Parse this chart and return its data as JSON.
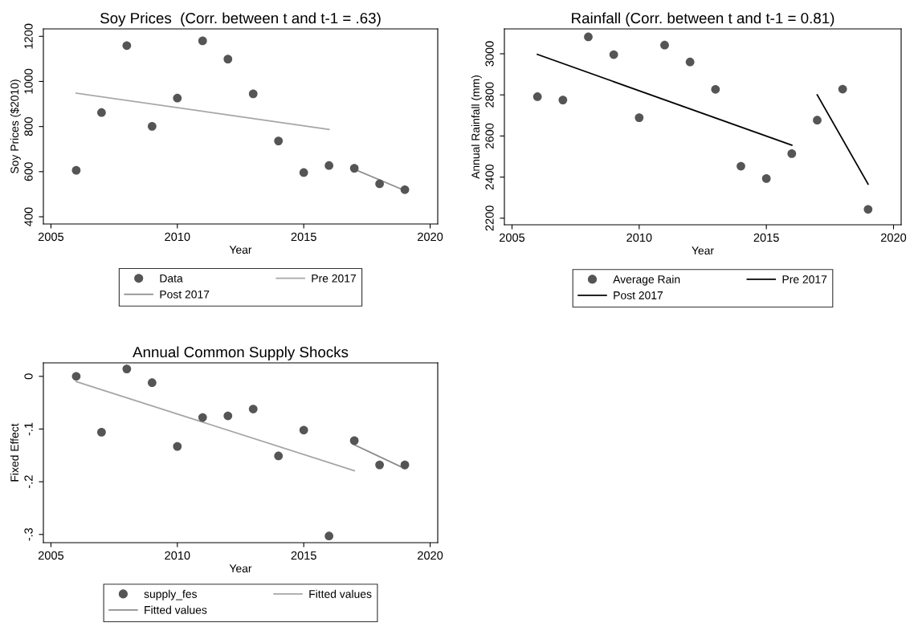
{
  "chart_data": [
    {
      "type": "scatter",
      "title": "Soy Prices  (Corr. between t and t-1 = .63)",
      "xlabel": "Year",
      "ylabel": "Soy Prices ($2010)",
      "xlim": [
        2004.7,
        2020.3
      ],
      "xticks": [
        2005,
        2010,
        2015,
        2020
      ],
      "ylim": [
        368,
        1233
      ],
      "yticks": [
        400,
        600,
        800,
        1000,
        1200
      ],
      "grid": false,
      "legend": "bottom",
      "series": [
        {
          "name": "Data",
          "marker": "circle",
          "color": "#555555",
          "x": [
            2006,
            2007,
            2008,
            2009,
            2010,
            2011,
            2012,
            2013,
            2014,
            2015,
            2016,
            2017,
            2018,
            2019
          ],
          "values": [
            606,
            862,
            1159,
            801,
            926,
            1180,
            1099,
            945,
            736,
            596,
            627,
            615,
            546,
            520
          ]
        },
        {
          "name": "Pre 2017",
          "type": "line",
          "marker": "none",
          "color": "#a6a6a6",
          "x": [
            2006,
            2016
          ],
          "values": [
            948,
            787
          ]
        },
        {
          "name": "Post 2017",
          "type": "line",
          "marker": "none",
          "color": "#8c8c8c",
          "x": [
            2017,
            2019
          ],
          "values": [
            611,
            516
          ]
        }
      ]
    },
    {
      "type": "scatter",
      "title": "Rainfall (Corr. between t and t-1 = 0.81)",
      "xlabel": "Year",
      "ylabel": "Annual Rainfall (mm)",
      "xlim": [
        2004.7,
        2020.3
      ],
      "xticks": [
        2005,
        2010,
        2015,
        2020
      ],
      "ylim": [
        2168,
        3121
      ],
      "yticks": [
        2200,
        2400,
        2600,
        2800,
        3000
      ],
      "grid": false,
      "legend": "bottom",
      "series": [
        {
          "name": "Average Rain",
          "marker": "circle",
          "color": "#555555",
          "x": [
            2006,
            2007,
            2008,
            2009,
            2010,
            2011,
            2012,
            2013,
            2014,
            2015,
            2016,
            2017,
            2018,
            2019
          ],
          "values": [
            2791,
            2775,
            3082,
            2996,
            2689,
            3042,
            2960,
            2827,
            2453,
            2393,
            2514,
            2677,
            2828,
            2243
          ]
        },
        {
          "name": "Pre 2017",
          "type": "line",
          "marker": "none",
          "color": "#000000",
          "x": [
            2006,
            2016
          ],
          "values": [
            2997,
            2555
          ]
        },
        {
          "name": "Post 2017",
          "type": "line",
          "marker": "none",
          "color": "#000000",
          "x": [
            2017,
            2019
          ],
          "values": [
            2800,
            2366
          ]
        }
      ]
    },
    {
      "type": "scatter",
      "title": "Annual Common Supply Shocks",
      "xlabel": "Year",
      "ylabel": "Fixed Effect",
      "xlim": [
        2004.7,
        2020.3
      ],
      "xticks": [
        2005,
        2010,
        2015,
        2020
      ],
      "ylim": [
        -0.3156,
        0.0256
      ],
      "yticks": [
        {
          "value": 0,
          "label": "0"
        },
        {
          "value": -0.1,
          "label": "-.1"
        },
        {
          "value": -0.2,
          "label": "-.2"
        },
        {
          "value": -0.3,
          "label": "-.3"
        }
      ],
      "grid": false,
      "legend": "bottom",
      "series": [
        {
          "name": "supply_fes",
          "marker": "circle",
          "color": "#555555",
          "x": [
            2006,
            2007,
            2008,
            2009,
            2010,
            2011,
            2012,
            2013,
            2014,
            2015,
            2016,
            2017,
            2018,
            2019
          ],
          "values": [
            0,
            -0.106,
            0.014,
            -0.012,
            -0.133,
            -0.078,
            -0.075,
            -0.062,
            -0.151,
            -0.102,
            -0.303,
            -0.122,
            -0.168,
            -0.168
          ]
        },
        {
          "name": "Fitted values",
          "type": "line",
          "marker": "none",
          "color": "#a6a6a6",
          "x": [
            2006,
            2017
          ],
          "values": [
            -0.01,
            -0.179
          ]
        },
        {
          "name": "Fitted values",
          "type": "line",
          "marker": "none",
          "color": "#8c8c8c",
          "x": [
            2017,
            2019
          ],
          "values": [
            -0.13,
            -0.175
          ]
        }
      ]
    }
  ]
}
